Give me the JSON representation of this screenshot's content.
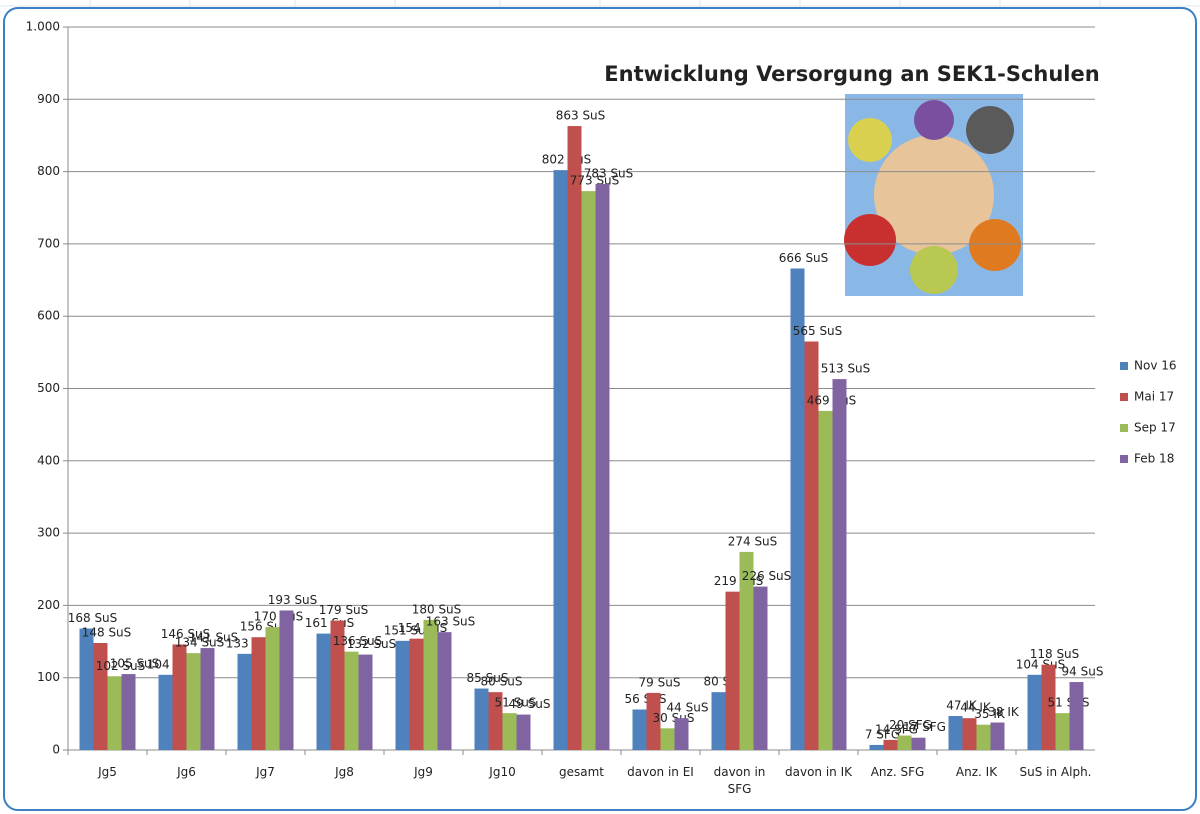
{
  "chart_data": {
    "type": "bar",
    "title": "Entwicklung Versorgung an SEK1-Schulen",
    "categories": [
      "Jg5",
      "Jg6",
      "Jg7",
      "Jg8",
      "Jg9",
      "Jg10",
      "gesamt",
      "davon in EI",
      "davon in SFG",
      "davon in IK",
      "Anz. SFG",
      "Anz. IK",
      "SuS in Alph."
    ],
    "series": [
      {
        "name": "Nov 16",
        "color": "#4f81bd",
        "values": [
          168,
          104,
          133,
          161,
          151,
          85,
          802,
          56,
          80,
          666,
          7,
          47,
          104
        ],
        "value_labels": [
          "168 SuS",
          "104 SuS",
          "133 SuS",
          "161 SuS",
          "151 SuS",
          "85 SuS",
          "802 SuS",
          "56 SuS",
          "80 SuS",
          "666 SuS",
          "7 SFG",
          "47 IK",
          "104 SuS"
        ]
      },
      {
        "name": "Mai 17",
        "color": "#c0504d",
        "values": [
          148,
          146,
          156,
          179,
          154,
          80,
          863,
          79,
          219,
          565,
          14,
          44,
          118
        ],
        "value_labels": [
          "148 SuS",
          "146 SuS",
          "156 SuS",
          "179 SuS",
          "154 SuS",
          "80 SuS",
          "863 SuS",
          "79 SuS",
          "219 SuS",
          "565 SuS",
          "14 SFG",
          "44 IK",
          "118 SuS"
        ]
      },
      {
        "name": "Sep 17",
        "color": "#9bbb59",
        "values": [
          102,
          134,
          170,
          136,
          180,
          51,
          773,
          30,
          274,
          469,
          20,
          35,
          51
        ],
        "value_labels": [
          "102 SuS",
          "134 SuS",
          "170 SuS",
          "136 SuS",
          "180 SuS",
          "51 SuS",
          "773 SuS",
          "30 SuS",
          "274 SuS",
          "469 SuS",
          "20 SFG",
          "35 IK",
          "51 SuS"
        ]
      },
      {
        "name": "Feb 18",
        "color": "#8064a2",
        "values": [
          105,
          141,
          193,
          132,
          163,
          49,
          783,
          44,
          226,
          513,
          17,
          38,
          94
        ],
        "value_labels": [
          "105 SuS",
          "141 SuS",
          "193 SuS",
          "132 SuS",
          "163 SuS",
          "49 SuS",
          "783 SuS",
          "44 SuS",
          "226 SuS",
          "513 SuS",
          "17 SFG",
          "38 IK",
          "94 SuS"
        ]
      }
    ],
    "ylim": [
      0,
      1000
    ],
    "yticks": [
      0,
      100,
      200,
      300,
      400,
      500,
      600,
      700,
      800,
      900,
      {
        "value": 1000,
        "label": "1.000"
      }
    ],
    "grid": true,
    "legend": "right"
  }
}
